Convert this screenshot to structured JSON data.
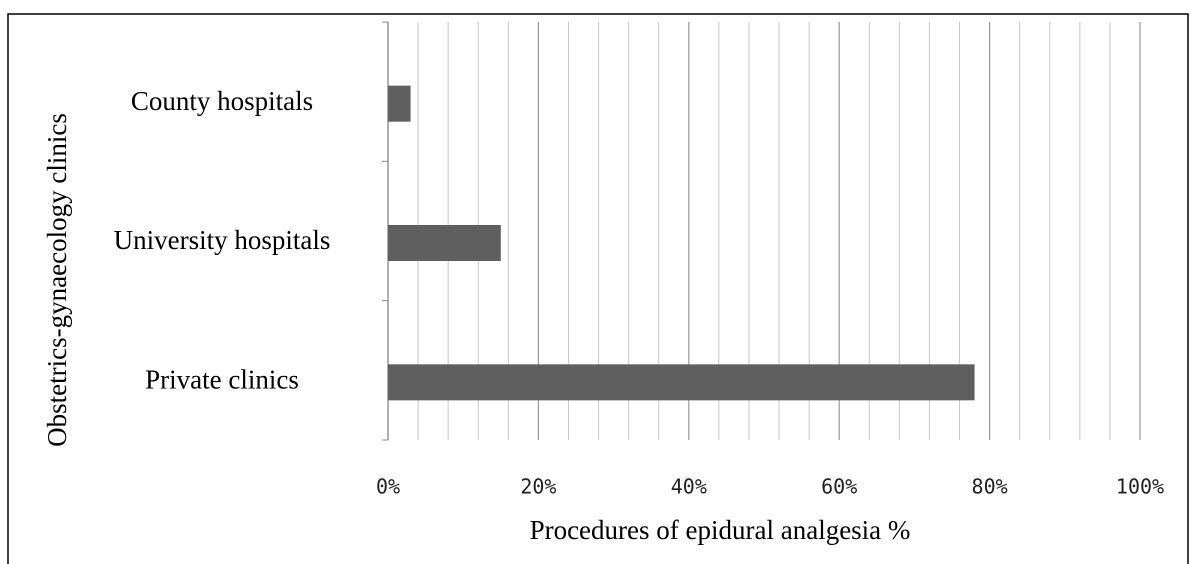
{
  "chart_data": {
    "type": "bar",
    "orientation": "horizontal",
    "categories": [
      "County hospitals",
      "University hospitals",
      "Private clinics"
    ],
    "values": [
      3,
      15,
      78
    ],
    "color": "#5f5f5f",
    "xlabel": "Procedures of epidural analgesia %",
    "ylabel": "Obstetrics-gynaecology clinics",
    "xlim": [
      0,
      100
    ],
    "xticks": [
      {
        "value": 0,
        "label": "0%"
      },
      {
        "value": 20,
        "label": "20%"
      },
      {
        "value": 40,
        "label": "40%"
      },
      {
        "value": 60,
        "label": "60%"
      },
      {
        "value": 80,
        "label": "80%"
      },
      {
        "value": 100,
        "label": "100%"
      }
    ],
    "minor_xticks": [
      4,
      8,
      12,
      16,
      24,
      28,
      32,
      36,
      44,
      48,
      52,
      56,
      64,
      68,
      72,
      76,
      84,
      88,
      92,
      96
    ],
    "grid": true
  }
}
